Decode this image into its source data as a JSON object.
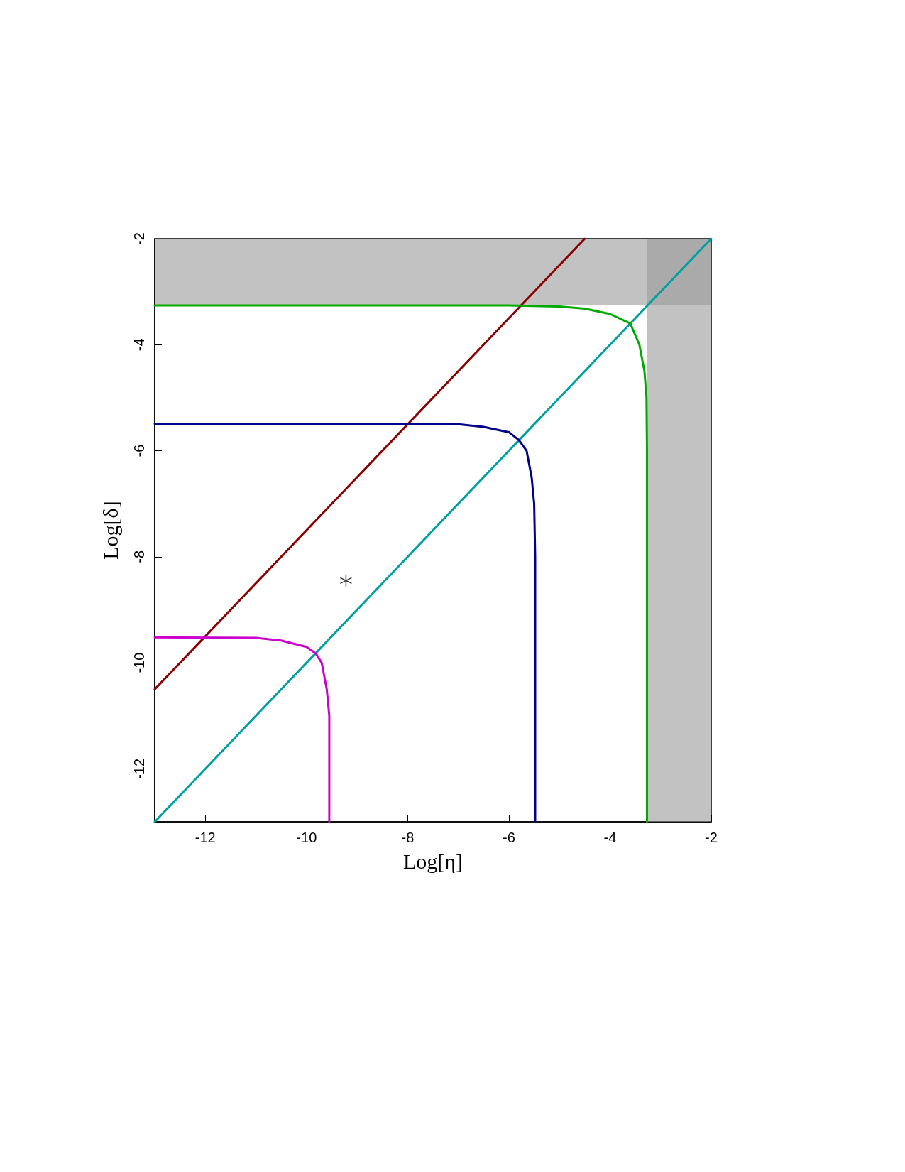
{
  "chart_data": {
    "type": "line",
    "xlabel": "Log[η]",
    "ylabel": "Log[δ]",
    "xlim": [
      -13,
      -2
    ],
    "ylim": [
      -13,
      -2
    ],
    "xticks": [
      -12,
      -10,
      -8,
      -6,
      -4,
      -2
    ],
    "yticks": [
      -12,
      -10,
      -8,
      -6,
      -4,
      -2
    ],
    "grid": false,
    "marker": "none",
    "line_style": "solid",
    "bands": [
      {
        "axis": "y",
        "from": -3.26,
        "to": -2,
        "color": "#9a9a9a"
      },
      {
        "axis": "x",
        "from": -3.27,
        "to": -2,
        "color": "#9a9a9a"
      }
    ],
    "series": [
      {
        "color": "#00a0a0",
        "x": [
          -13,
          -2
        ],
        "values": [
          -13,
          -2
        ]
      },
      {
        "color": "#8b0000",
        "x": [
          -13,
          -4.5
        ],
        "values": [
          -10.5,
          -2
        ]
      },
      {
        "color": "#00aa00",
        "x": [
          -13,
          -6,
          -5,
          -4.5,
          -4,
          -3.6,
          -3.42,
          -3.32,
          -3.28,
          -3.27,
          -3.27
        ],
        "values": [
          -3.26,
          -3.26,
          -3.28,
          -3.32,
          -3.42,
          -3.6,
          -4,
          -4.5,
          -5,
          -6,
          -13
        ]
      },
      {
        "color": "#00008b",
        "x": [
          -13,
          -8,
          -7,
          -6.5,
          -6,
          -5.8,
          -5.65,
          -5.55,
          -5.5,
          -5.48,
          -5.48
        ],
        "values": [
          -5.49,
          -5.49,
          -5.5,
          -5.55,
          -5.65,
          -5.8,
          -6,
          -6.5,
          -7,
          -8,
          -13
        ]
      },
      {
        "color": "#cc00cc",
        "x": [
          -13,
          -11,
          -10.5,
          -10,
          -9.82,
          -9.7,
          -9.6,
          -9.55,
          -9.55
        ],
        "values": [
          -9.52,
          -9.53,
          -9.58,
          -9.7,
          -9.82,
          -10,
          -10.5,
          -11,
          -13
        ]
      },
      {
        "type": "scatter",
        "marker": "cross",
        "color": "#000000",
        "x": [
          -9.22
        ],
        "values": [
          -8.45
        ]
      }
    ]
  }
}
